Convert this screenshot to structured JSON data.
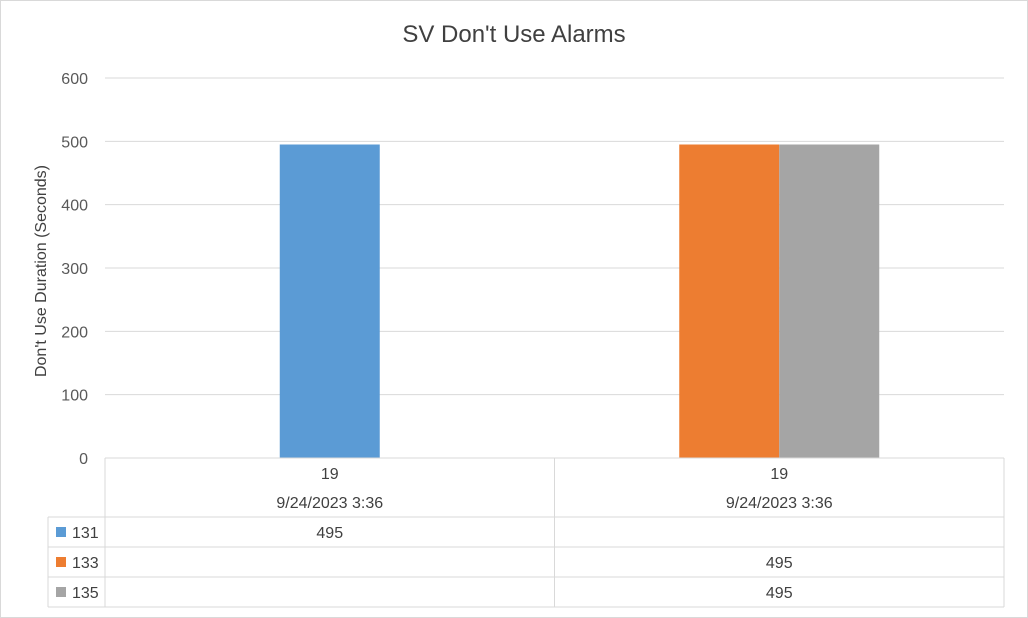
{
  "chart_data": {
    "type": "bar",
    "title": "SV Don't Use Alarms",
    "xlabel": "",
    "ylabel": "Don't Use Duration (Seconds)",
    "ylim": [
      0,
      600
    ],
    "yticks": [
      0,
      100,
      200,
      300,
      400,
      500,
      600
    ],
    "grid": true,
    "legend": "data-table",
    "categories": [
      {
        "line1": "19",
        "line2": "9/24/2023 3:36"
      },
      {
        "line1": "19",
        "line2": "9/24/2023 3:36"
      }
    ],
    "series": [
      {
        "name": "131",
        "color": "#5b9bd5",
        "values": [
          495,
          null
        ]
      },
      {
        "name": "133",
        "color": "#ed7d31",
        "values": [
          null,
          495
        ]
      },
      {
        "name": "135",
        "color": "#a5a5a5",
        "values": [
          null,
          495
        ]
      }
    ]
  }
}
